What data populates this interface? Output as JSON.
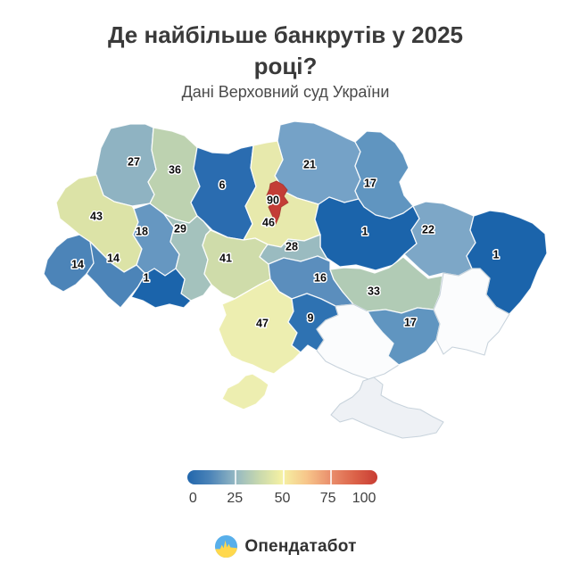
{
  "title": "Де найбільше банкрутів у 2025 році?",
  "subtitle": "Дані Верховний суд України",
  "brand": {
    "name": "Опендатабот",
    "colors": {
      "blue": "#58afea",
      "yellow": "#ffd84d",
      "pulse": "#ffd84d"
    }
  },
  "legend": {
    "ticks": [
      "0",
      "25",
      "50",
      "75",
      "100"
    ],
    "gradient": [
      "#2166ac 0%",
      "#4c84b8 12%",
      "#93b7c3 25%",
      "#c9d9ad 38%",
      "#f5f1a3 50%",
      "#f7c58a 63%",
      "#ea906d 75%",
      "#dc6349 88%",
      "#c83c33 100%"
    ]
  },
  "chart_data": {
    "type": "choropleth",
    "map": "ukraine-oblasts",
    "title": "Де найбільше банкрутів у 2025 році?",
    "source": "Дані Верховний суд України",
    "colorscale": {
      "min": 0,
      "max": 100,
      "ticks": [
        0,
        25,
        50,
        75,
        100
      ]
    },
    "no_data_fill": "#fbfcfd",
    "regions": [
      {
        "id": "volyn",
        "value": 27,
        "fill": "#8fb3c2"
      },
      {
        "id": "rivne",
        "value": 36,
        "fill": "#bdd2b0"
      },
      {
        "id": "zhytomyr",
        "value": 6,
        "fill": "#2a6cb0"
      },
      {
        "id": "chernihiv",
        "value": 21,
        "fill": "#75a2c7"
      },
      {
        "id": "sumy",
        "value": 17,
        "fill": "#6095c0"
      },
      {
        "id": "kyiv-oblast",
        "value": 46,
        "fill": "#e7e9ac"
      },
      {
        "id": "poltava",
        "value": 1,
        "fill": "#1b64ab"
      },
      {
        "id": "kharkiv",
        "value": 22,
        "fill": "#7da7c7"
      },
      {
        "id": "luhansk",
        "value": 1,
        "fill": "#1b64ab"
      },
      {
        "id": "lviv",
        "value": 43,
        "fill": "#dce3a7"
      },
      {
        "id": "ternopil",
        "value": 18,
        "fill": "#6697c1"
      },
      {
        "id": "khmelnytskyi",
        "value": 29,
        "fill": "#a4c2bd"
      },
      {
        "id": "vinnytsia",
        "value": 41,
        "fill": "#cfdcaa"
      },
      {
        "id": "cherkasy",
        "value": 28,
        "fill": "#9abbc0"
      },
      {
        "id": "kirovohrad",
        "value": 16,
        "fill": "#5b8ebd"
      },
      {
        "id": "dnipropetrovsk",
        "value": 33,
        "fill": "#b1cbb5"
      },
      {
        "id": "zakarpattia",
        "value": 14,
        "fill": "#4c84b8"
      },
      {
        "id": "ivano-frankivsk",
        "value": 14,
        "fill": "#4c84b8"
      },
      {
        "id": "chernivtsi",
        "value": 1,
        "fill": "#1b64ab"
      },
      {
        "id": "odesa",
        "value": 47,
        "fill": "#edeeb0"
      },
      {
        "id": "mykolaiv",
        "value": 9,
        "fill": "#2e72b2"
      },
      {
        "id": "kherson",
        "value": null,
        "fill": "#fbfcfd"
      },
      {
        "id": "zaporizhzhia",
        "value": 17,
        "fill": "#6095c0"
      },
      {
        "id": "donetsk",
        "value": null,
        "fill": "#fbfcfd"
      },
      {
        "id": "crimea",
        "value": null,
        "fill": "#eef1f5"
      },
      {
        "id": "kyiv-city",
        "value": 90,
        "fill": "#c33d36"
      }
    ]
  }
}
